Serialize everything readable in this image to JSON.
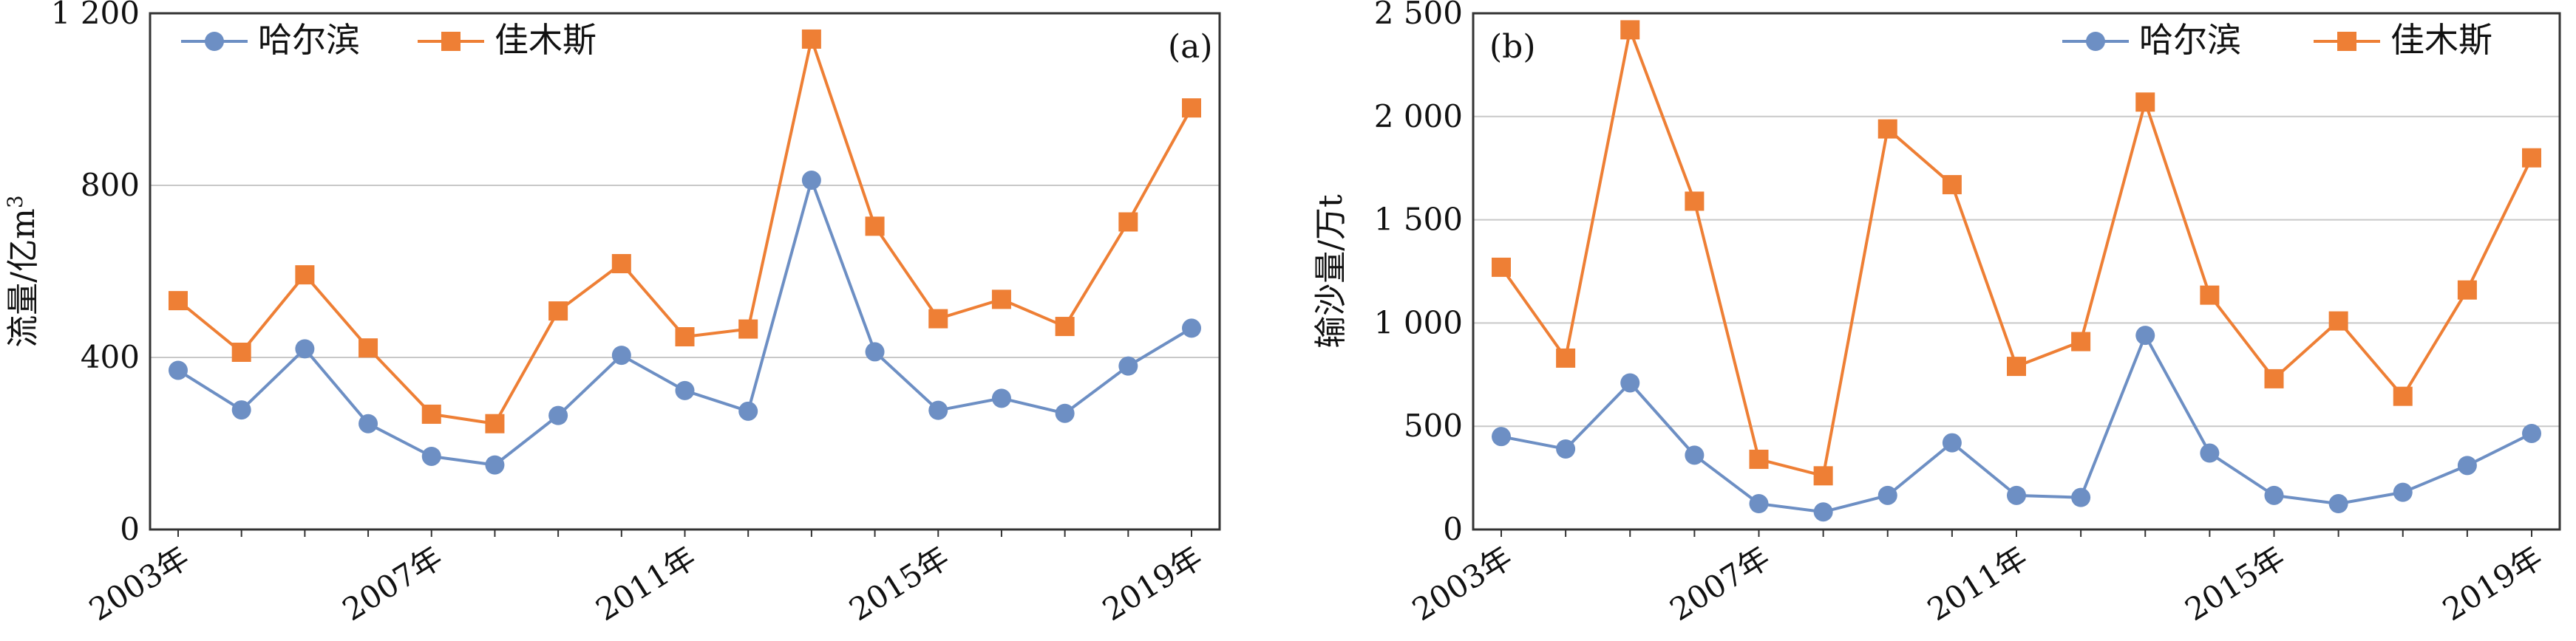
{
  "chart_data": [
    {
      "type": "line",
      "panel_label": "(a)",
      "ylabel": "流量/亿m",
      "ylabel_sup": "3",
      "ylim": [
        0,
        1200
      ],
      "yticks": [
        0,
        400,
        800,
        1200
      ],
      "ytick_labels": [
        "0",
        "400",
        "800",
        "1 200"
      ],
      "grid": true,
      "legend_position": "top-left",
      "x": [
        2003,
        2004,
        2005,
        2006,
        2007,
        2008,
        2009,
        2010,
        2011,
        2012,
        2013,
        2014,
        2015,
        2016,
        2017,
        2018,
        2019
      ],
      "xtick_labels": [
        "2003年",
        "2007年",
        "2011年",
        "2015年",
        "2019年"
      ],
      "series": [
        {
          "name": "哈尔滨",
          "color": "#6d8fc4",
          "marker": "circle",
          "values": [
            370,
            278,
            420,
            246,
            170,
            150,
            265,
            405,
            323,
            275,
            812,
            413,
            277,
            305,
            270,
            380,
            468
          ]
        },
        {
          "name": "佳木斯",
          "color": "#ee7f35",
          "marker": "square",
          "values": [
            532,
            412,
            592,
            422,
            268,
            246,
            508,
            618,
            448,
            466,
            1140,
            705,
            490,
            535,
            472,
            715,
            980
          ]
        }
      ]
    },
    {
      "type": "line",
      "panel_label": "(b)",
      "ylabel": "输沙量/万t",
      "ylim": [
        0,
        2500
      ],
      "yticks": [
        0,
        500,
        1000,
        1500,
        2000,
        2500
      ],
      "ytick_labels": [
        "0",
        "500",
        "1 000",
        "1 500",
        "2 000",
        "2 500"
      ],
      "grid": true,
      "legend_position": "top-right",
      "x": [
        2003,
        2004,
        2005,
        2006,
        2007,
        2008,
        2009,
        2010,
        2011,
        2012,
        2013,
        2014,
        2015,
        2016,
        2017,
        2018,
        2019
      ],
      "xtick_labels": [
        "2003年",
        "2007年",
        "2011年",
        "2015年",
        "2019年"
      ],
      "series": [
        {
          "name": "哈尔滨",
          "color": "#6d8fc4",
          "marker": "circle",
          "values": [
            450,
            390,
            710,
            360,
            125,
            85,
            165,
            420,
            165,
            155,
            940,
            370,
            165,
            125,
            180,
            310,
            465
          ]
        },
        {
          "name": "佳木斯",
          "color": "#ee7f35",
          "marker": "square",
          "values": [
            1270,
            830,
            2420,
            1590,
            340,
            260,
            1940,
            1670,
            790,
            910,
            2070,
            1135,
            730,
            1010,
            645,
            1160,
            1800
          ]
        }
      ]
    }
  ]
}
